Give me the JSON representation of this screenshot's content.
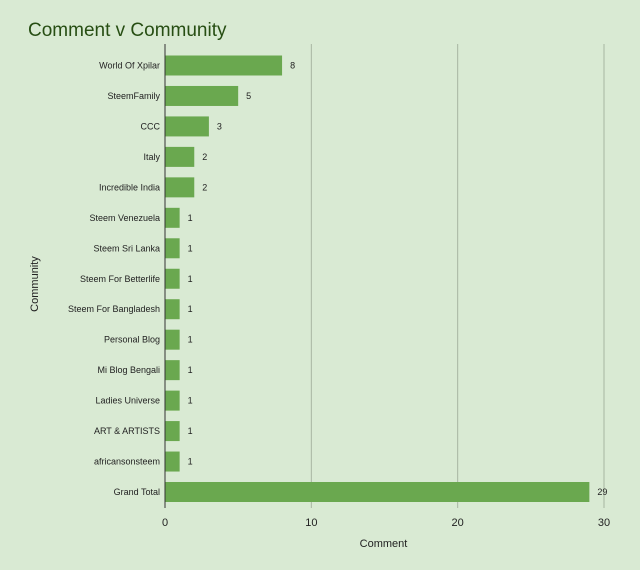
{
  "chart_data": {
    "type": "bar",
    "orientation": "horizontal",
    "title": "Comment v Community",
    "xlabel": "Comment",
    "ylabel": "Community",
    "categories": [
      "World Of Xpilar",
      "SteemFamily",
      "CCC",
      "Italy",
      "Incredible India",
      "Steem Venezuela",
      "Steem Sri Lanka",
      "Steem For Betterlife",
      "Steem For Bangladesh",
      "Personal Blog",
      "Mi Blog Bengali",
      "Ladies Universe",
      "ART & ARTISTS",
      "africansonsteem",
      "Grand Total"
    ],
    "values": [
      8,
      5,
      3,
      2,
      2,
      1,
      1,
      1,
      1,
      1,
      1,
      1,
      1,
      1,
      29
    ],
    "value_labels": [
      "8",
      "5",
      "3",
      "2",
      "2",
      "1",
      "1",
      "1",
      "1",
      "1",
      "1",
      "1",
      "1",
      "1",
      "29"
    ],
    "xlim": [
      0,
      30
    ],
    "xticks": [
      0,
      10,
      20,
      30
    ],
    "xtick_labels": [
      "0",
      "10",
      "20",
      "30"
    ],
    "grid": "vertical",
    "legend": "none",
    "colors": {
      "background": "#d9ead3",
      "bar": "#6aa84f",
      "title": "#274e13",
      "grid": "#a8b5a2",
      "text": "#222222"
    }
  }
}
